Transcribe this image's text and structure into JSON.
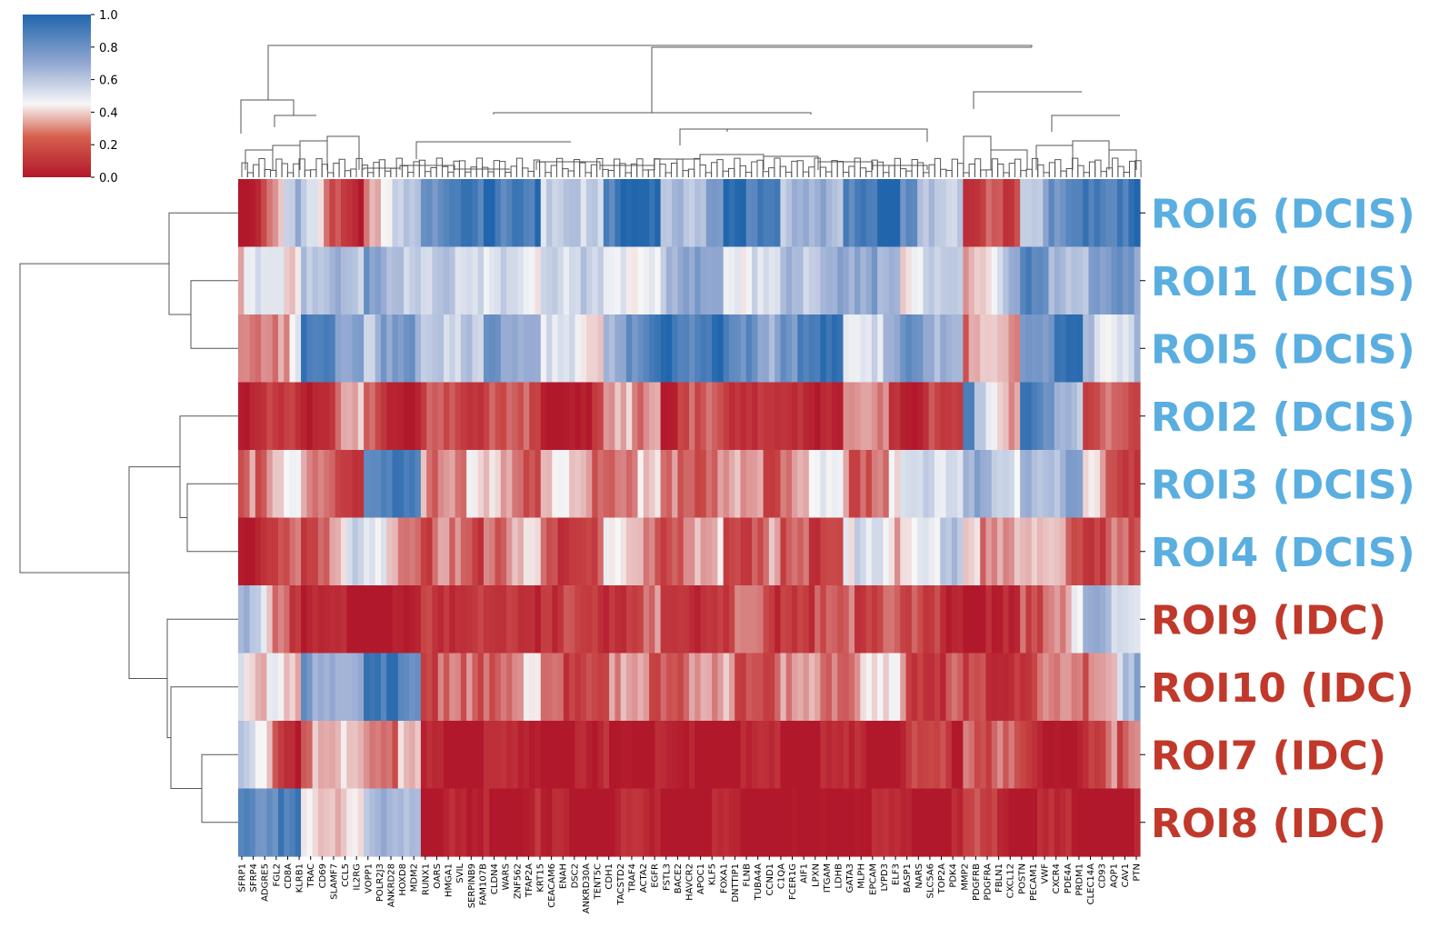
{
  "chart_data": {
    "type": "heatmap",
    "title": "",
    "xlabel": "",
    "ylabel": "",
    "rows": [
      {
        "label": "ROI6 (DCIS)",
        "color": "#5aaee0"
      },
      {
        "label": "ROI1 (DCIS)",
        "color": "#5aaee0"
      },
      {
        "label": "ROI5 (DCIS)",
        "color": "#5aaee0"
      },
      {
        "label": "ROI2 (DCIS)",
        "color": "#5aaee0"
      },
      {
        "label": "ROI3 (DCIS)",
        "color": "#5aaee0"
      },
      {
        "label": "ROI4 (DCIS)",
        "color": "#5aaee0"
      },
      {
        "label": "ROI9 (IDC)",
        "color": "#c0392b"
      },
      {
        "label": "ROI10 (IDC)",
        "color": "#c0392b"
      },
      {
        "label": "ROI7 (IDC)",
        "color": "#c0392b"
      },
      {
        "label": "ROI8 (IDC)",
        "color": "#c0392b"
      }
    ],
    "column_labels": [
      "SFRP1",
      "SFRP4",
      "ADGRE5",
      "FGL2",
      "CD8A",
      "KLRB1",
      "TRAC",
      "CD69",
      "SLAMF7",
      "CCL5",
      "IL2RG",
      "VOPP1",
      "POLR2J3",
      "ANKRD28",
      "HOXD8",
      "MDM2",
      "RUNX1",
      "OARS",
      "HMGA1",
      "SVIL",
      "SERPINB9",
      "FAM107B",
      "CLDN4",
      "WARS",
      "ZNF562",
      "TFAP2A",
      "KRT15",
      "CEACAM6",
      "ENAH",
      "DSC2",
      "ANKRD30A",
      "TENT5C",
      "CDH1",
      "TACSTD2",
      "TRAF4",
      "ACTA2",
      "EGFR",
      "FSTL3",
      "BACE2",
      "HAVCR2",
      "APOC1",
      "KLF5",
      "FOXA1",
      "DNTTIP1",
      "FLNB",
      "TUBA4A",
      "CCND1",
      "C1QA",
      "FCER1G",
      "AIF1",
      "LPXN",
      "ITGAM",
      "LDHB",
      "GATA3",
      "MLPH",
      "EPCAM",
      "LYPD3",
      "ELF3",
      "BASP1",
      "NARS",
      "SLC5A6",
      "TOP2A",
      "PDK4",
      "MMP2",
      "PDGFRB",
      "PDGFRA",
      "FBLN1",
      "CXCL12",
      "POSTN",
      "PECAM1",
      "VWF",
      "CXCR4",
      "PDE4A",
      "PRDM1",
      "CLEC14A",
      "CD93",
      "AQP1",
      "CAV1",
      "PTN"
    ],
    "colorbar": {
      "ticks": [
        "0.0",
        "0.2",
        "0.4",
        "0.6",
        "0.8",
        "1.0"
      ],
      "range": [
        0,
        1
      ],
      "cmap": [
        "#b2182b",
        "#f7f7f7",
        "#2166ac"
      ]
    },
    "num_columns": 158,
    "blocks": [
      {
        "row": "ROI6 (DCIS)",
        "segments": [
          [
            0,
            0.75
          ],
          [
            0.6,
            0.1
          ],
          [
            0.2,
            0.8
          ],
          [
            0.95,
            0.9
          ],
          [
            1,
            1
          ],
          [
            0.55,
            0.7
          ],
          [
            1,
            1
          ],
          [
            0.75,
            0.75
          ],
          [
            1,
            1
          ],
          [
            0.7,
            0.7
          ],
          [
            1,
            1
          ],
          [
            0.85,
            0.6
          ],
          [
            0.1,
            0.35
          ],
          [
            0.7,
            0.9
          ],
          [
            1,
            1
          ]
        ]
      },
      {
        "row": "ROI1 (DCIS)",
        "segments": [
          [
            0.5,
            0.5
          ],
          [
            0.75,
            0.6
          ],
          [
            0.9,
            0.65
          ],
          [
            0.55,
            0.7
          ],
          [
            0.6,
            0.45
          ],
          [
            0.7,
            0.55
          ],
          [
            0.45,
            0.6
          ],
          [
            0.65,
            0.8
          ],
          [
            0.6,
            0.5
          ],
          [
            0.7,
            0.75
          ],
          [
            0.65,
            0.85
          ],
          [
            0.55,
            0.6
          ],
          [
            0.45,
            0.75
          ],
          [
            0.9,
            0.7
          ],
          [
            0.75,
            0.8
          ]
        ]
      },
      {
        "row": "ROI5 (DCIS)",
        "segments": [
          [
            0.3,
            0.5
          ],
          [
            0.95,
            0.85
          ],
          [
            0.7,
            0.8
          ],
          [
            0.75,
            0.6
          ],
          [
            0.85,
            0.8
          ],
          [
            0.55,
            0.45
          ],
          [
            0.75,
            0.9
          ],
          [
            1,
            1
          ],
          [
            0.85,
            0.8
          ],
          [
            0.9,
            0.95
          ],
          [
            0.6,
            0.7
          ],
          [
            0.85,
            0.75
          ],
          [
            0.3,
            0.4
          ],
          [
            0.85,
            0.95
          ],
          [
            0.6,
            0.65
          ]
        ]
      },
      {
        "row": "ROI2 (DCIS)",
        "segments": [
          [
            0.1,
            0.2
          ],
          [
            0.15,
            0.35
          ],
          [
            0.25,
            0.1
          ],
          [
            0.2,
            0.25
          ],
          [
            0.35,
            0.2
          ],
          [
            0.05,
            0.15
          ],
          [
            0.3,
            0.45
          ],
          [
            0.15,
            0.3
          ],
          [
            0.25,
            0.15
          ],
          [
            0.1,
            0.2
          ],
          [
            0.3,
            0.25
          ],
          [
            0.15,
            0.2
          ],
          [
            0.95,
            0.25
          ],
          [
            0.95,
            0.7
          ],
          [
            0.3,
            0.2
          ]
        ]
      },
      {
        "row": "ROI3 (DCIS)",
        "segments": [
          [
            0.25,
            0.6
          ],
          [
            0.3,
            0.2
          ],
          [
            0.95,
            0.85
          ],
          [
            0.35,
            0.45
          ],
          [
            0.4,
            0.3
          ],
          [
            0.5,
            0.35
          ],
          [
            0.3,
            0.45
          ],
          [
            0.25,
            0.4
          ],
          [
            0.35,
            0.3
          ],
          [
            0.4,
            0.5
          ],
          [
            0.3,
            0.45
          ],
          [
            0.55,
            0.65
          ],
          [
            0.85,
            0.45
          ],
          [
            0.8,
            0.7
          ],
          [
            0.4,
            0.25
          ]
        ]
      },
      {
        "row": "ROI4 (DCIS)",
        "segments": [
          [
            0.1,
            0.25
          ],
          [
            0.2,
            0.6
          ],
          [
            0.55,
            0.35
          ],
          [
            0.3,
            0.25
          ],
          [
            0.35,
            0.4
          ],
          [
            0.2,
            0.3
          ],
          [
            0.45,
            0.35
          ],
          [
            0.3,
            0.4
          ],
          [
            0.25,
            0.35
          ],
          [
            0.2,
            0.3
          ],
          [
            0.6,
            0.45
          ],
          [
            0.55,
            0.65
          ],
          [
            0.35,
            0.5
          ],
          [
            0.4,
            0.3
          ],
          [
            0.3,
            0.2
          ]
        ]
      },
      {
        "row": "ROI9 (IDC)",
        "segments": [
          [
            0.7,
            0.2
          ],
          [
            0.05,
            0.05
          ],
          [
            0.1,
            0.05
          ],
          [
            0.2,
            0.25
          ],
          [
            0.15,
            0.2
          ],
          [
            0.25,
            0.15
          ],
          [
            0.2,
            0.3
          ],
          [
            0.15,
            0.25
          ],
          [
            0.25,
            0.2
          ],
          [
            0.3,
            0.2
          ],
          [
            0.25,
            0.35
          ],
          [
            0.2,
            0.15
          ],
          [
            0.1,
            0.05
          ],
          [
            0.25,
            0.5
          ],
          [
            0.7,
            0.6
          ]
        ]
      },
      {
        "row": "ROI10 (IDC)",
        "segments": [
          [
            0.6,
            0.35
          ],
          [
            0.85,
            0.7
          ],
          [
            0.9,
            0.95
          ],
          [
            0.3,
            0.25
          ],
          [
            0.35,
            0.4
          ],
          [
            0.25,
            0.3
          ],
          [
            0.3,
            0.35
          ],
          [
            0.4,
            0.3
          ],
          [
            0.35,
            0.25
          ],
          [
            0.3,
            0.4
          ],
          [
            0.35,
            0.45
          ],
          [
            0.3,
            0.2
          ],
          [
            0.15,
            0.25
          ],
          [
            0.2,
            0.4
          ],
          [
            0.3,
            0.75
          ]
        ]
      },
      {
        "row": "ROI7 (IDC)",
        "segments": [
          [
            0.65,
            0.1
          ],
          [
            0.3,
            0.45
          ],
          [
            0.4,
            0.35
          ],
          [
            0.05,
            0.05
          ],
          [
            0.05,
            0.1
          ],
          [
            0.05,
            0.05
          ],
          [
            0.1,
            0.05
          ],
          [
            0.05,
            0.05
          ],
          [
            0.05,
            0.1
          ],
          [
            0.05,
            0.05
          ],
          [
            0.1,
            0.05
          ],
          [
            0.2,
            0.15
          ],
          [
            0.35,
            0.25
          ],
          [
            0.15,
            0.1
          ],
          [
            0.1,
            0.45
          ]
        ]
      },
      {
        "row": "ROI8 (IDC)",
        "segments": [
          [
            0.95,
            0.9
          ],
          [
            0.4,
            0.55
          ],
          [
            0.6,
            0.75
          ],
          [
            0.05,
            0.05
          ],
          [
            0.05,
            0.1
          ],
          [
            0.05,
            0.05
          ],
          [
            0.1,
            0.05
          ],
          [
            0.05,
            0.05
          ],
          [
            0.05,
            0.1
          ],
          [
            0.05,
            0.05
          ],
          [
            0.1,
            0.05
          ],
          [
            0.05,
            0.1
          ],
          [
            0.2,
            0.1
          ],
          [
            0.1,
            0.05
          ],
          [
            0.05,
            0.05
          ]
        ]
      }
    ]
  }
}
